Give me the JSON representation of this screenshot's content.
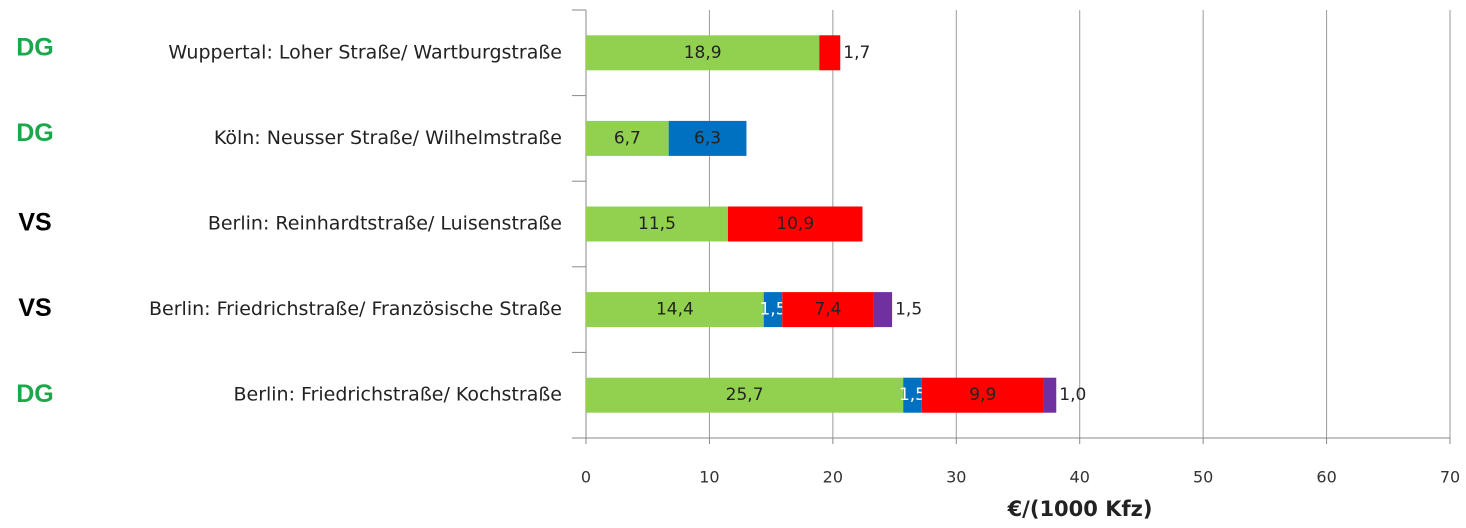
{
  "chart_data": {
    "type": "stacked-barh",
    "x_label": "€/(1000 Kfz)",
    "categories": [
      "Wuppertal: Loher Straße/ Wartburgstraße",
      "Köln: Neusser Straße/ Wilhelmstraße",
      "Berlin: Reinhardtstraße/ Luisenstraße",
      "Berlin: Friedrichstraße/ Französische Straße",
      "Berlin: Friedrichstraße/ Kochstraße"
    ],
    "tags": [
      "DG",
      "DG",
      "VS",
      "VS",
      "DG"
    ],
    "tag_colors": {
      "DG": "#1aa84a",
      "VS": "#000000"
    },
    "series": [
      {
        "color": "#92d050",
        "values": [
          18.9,
          6.7,
          11.5,
          14.4,
          25.7
        ],
        "value_labels": [
          "18,9",
          "6,7",
          "11,5",
          "14,4",
          "25,7"
        ]
      },
      {
        "color": "#0070c0",
        "values": [
          null,
          6.3,
          null,
          1.5,
          1.5
        ],
        "value_labels": [
          null,
          "6,3",
          null,
          "1,5",
          "1,5"
        ]
      },
      {
        "color": "#ff0000",
        "values": [
          1.7,
          null,
          10.9,
          7.4,
          9.9
        ],
        "value_labels": [
          "1,7",
          null,
          "10,9",
          "7,4",
          "9,9"
        ]
      },
      {
        "color": "#7030a0",
        "values": [
          null,
          null,
          null,
          1.5,
          1.0
        ],
        "value_labels": [
          null,
          null,
          null,
          "1,5",
          "1,0"
        ]
      }
    ],
    "xlim": [
      0,
      70
    ],
    "xticks": [
      0,
      10,
      20,
      30,
      40,
      50,
      60,
      70
    ],
    "grid": true
  }
}
